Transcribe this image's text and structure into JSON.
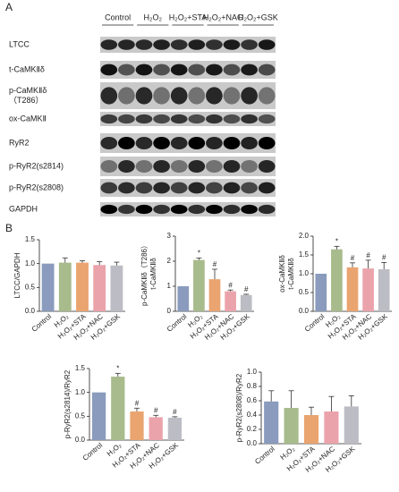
{
  "panel_labels": [
    "A",
    "B"
  ],
  "blot": {
    "lanes": [
      "Control",
      "H₂O₂",
      "H₂O₂+STA",
      "H₂O₂+NAC",
      "H₂O₂+GSK"
    ],
    "rows": [
      [
        "LTCC"
      ],
      [
        "t-CaMKⅡδ"
      ],
      [
        "p-CaMKⅡδ",
        "（T286）"
      ],
      [
        "ox-CaMKⅡ"
      ],
      [
        "RyR2"
      ],
      [
        "p-RyR2(s2814)"
      ],
      [
        "p-RyR2(s2808)"
      ],
      [
        "GAPDH"
      ]
    ]
  },
  "chart_data": [
    {
      "type": "bar",
      "ylabel": [
        "LTCC/GAPDH"
      ],
      "categories": [
        "Control",
        "H₂O₂",
        "H₂O₂+STA",
        "H₂O₂+NAC",
        "H₂O₂+GSK"
      ],
      "values": [
        1.0,
        1.02,
        1.02,
        0.97,
        0.96
      ],
      "errors": [
        0,
        0.1,
        0.04,
        0.07,
        0.07
      ],
      "colors": [
        "#8a9bbd",
        "#a8bb8c",
        "#eaa470",
        "#eba3ab",
        "#bcbcc4"
      ],
      "ylim": [
        0,
        1.5
      ],
      "yticks": [
        {
          "value": 0,
          "label": "0.0"
        },
        {
          "value": 0.5,
          "label": "0.5"
        },
        {
          "value": 1,
          "label": "1.0"
        },
        {
          "value": 1.5,
          "label": "1.5"
        }
      ]
    },
    {
      "type": "bar",
      "ylabel": [
        "p-CaMKⅡδ（T286）",
        "t-CaMKⅡδ"
      ],
      "categories": [
        "Control",
        "H₂O₂",
        "H₂O₂+STA",
        "H₂O₂+NAC",
        "H₂O₂+GSK"
      ],
      "values": [
        1.0,
        2.05,
        1.28,
        0.8,
        0.65
      ],
      "errors": [
        0,
        0.08,
        0.4,
        0.05,
        0.03
      ],
      "annotations": [
        null,
        "*",
        "#",
        "#",
        "#"
      ],
      "colors": [
        "#8a9bbd",
        "#a8bb8c",
        "#eaa470",
        "#eba3ab",
        "#bcbcc4"
      ],
      "ylim": [
        0,
        3
      ],
      "yticks": [
        0,
        1,
        2,
        3
      ]
    },
    {
      "type": "bar",
      "ylabel": [
        "ox-CaMKⅡδ",
        "t-CaMKⅡδ"
      ],
      "categories": [
        "Control",
        "H₂O₂",
        "H₂O₂+STA",
        "H₂O₂+NAC",
        "H₂O₂+GSK"
      ],
      "values": [
        1.0,
        1.65,
        1.17,
        1.14,
        1.12
      ],
      "errors": [
        0,
        0.08,
        0.12,
        0.22,
        0.18
      ],
      "annotations": [
        null,
        "*",
        "#",
        "#",
        "#"
      ],
      "colors": [
        "#8a9bbd",
        "#a8bb8c",
        "#eaa470",
        "#eba3ab",
        "#bcbcc4"
      ],
      "ylim": [
        0,
        2
      ],
      "yticks": [
        {
          "value": 0,
          "label": "0.0"
        },
        {
          "value": 0.5,
          "label": "0.5"
        },
        {
          "value": 1,
          "label": "1.0"
        },
        {
          "value": 1.5,
          "label": "1.5"
        },
        {
          "value": 2,
          "label": "2.0"
        }
      ]
    },
    {
      "type": "bar",
      "ylabel": [
        "p-RyR2(s2814)/RyR2"
      ],
      "categories": [
        "Control",
        "H₂O₂",
        "H₂O₂+STA",
        "H₂O₂+NAC",
        "H₂O₂+GSK"
      ],
      "values": [
        1.0,
        1.33,
        0.6,
        0.48,
        0.47
      ],
      "errors": [
        0,
        0.07,
        0.07,
        0.04,
        0.02
      ],
      "annotations": [
        null,
        "*",
        "#",
        "#",
        "#"
      ],
      "colors": [
        "#8a9bbd",
        "#a8bb8c",
        "#eaa470",
        "#eba3ab",
        "#bcbcc4"
      ],
      "ylim": [
        0,
        1.5
      ],
      "yticks": [
        {
          "value": 0,
          "label": "0.0"
        },
        {
          "value": 0.5,
          "label": "0.5"
        },
        {
          "value": 1,
          "label": "1.0"
        },
        {
          "value": 1.5,
          "label": "1.5"
        }
      ]
    },
    {
      "type": "bar",
      "ylabel": [
        "p-RyR2(s2808)/RyR2"
      ],
      "categories": [
        "Control",
        "H₂O₂",
        "H₂O₂+STA",
        "H₂O₂+NAC",
        "H₂O₂+GSK"
      ],
      "values": [
        0.59,
        0.5,
        0.4,
        0.45,
        0.52
      ],
      "errors": [
        0.15,
        0.24,
        0.11,
        0.21,
        0.15
      ],
      "colors": [
        "#8a9bbd",
        "#a8bb8c",
        "#eaa470",
        "#eba3ab",
        "#bcbcc4"
      ],
      "ylim": [
        0,
        1
      ],
      "yticks": [
        {
          "value": 0,
          "label": "0.0"
        },
        {
          "value": 0.2,
          "label": "0.2"
        },
        {
          "value": 0.4,
          "label": "0.4"
        },
        {
          "value": 0.6,
          "label": "0.6"
        },
        {
          "value": 0.8,
          "label": "0.8"
        },
        {
          "value": 1,
          "label": "1.0"
        }
      ]
    }
  ]
}
